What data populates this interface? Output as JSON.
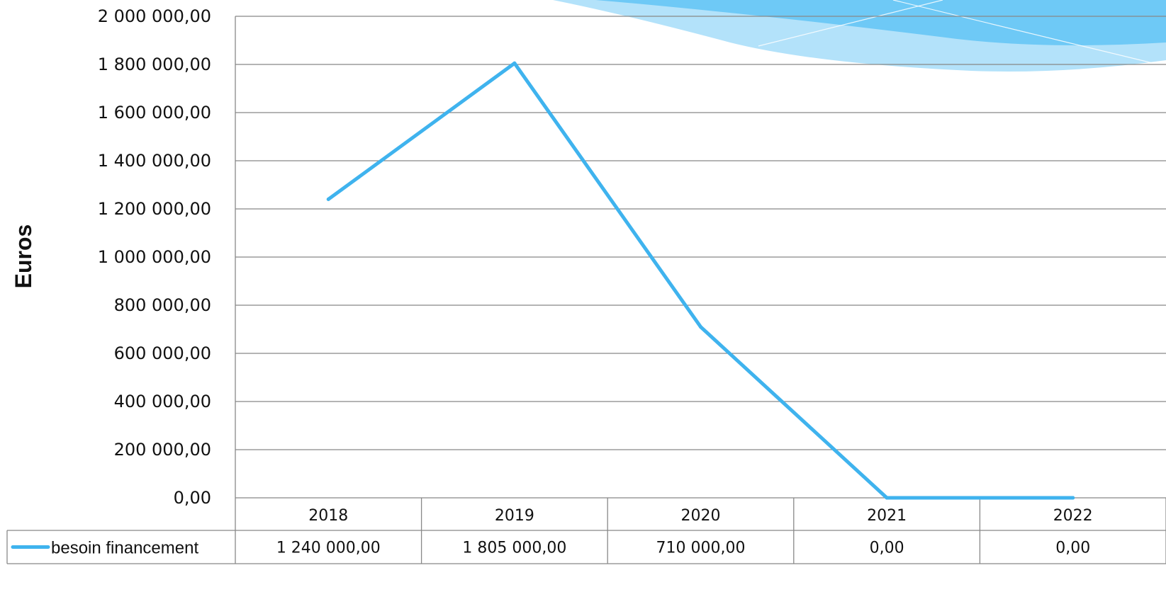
{
  "chart_data": {
    "type": "line",
    "categories": [
      "2018",
      "2019",
      "2020",
      "2021",
      "2022"
    ],
    "series": [
      {
        "name": "besoin financement",
        "values": [
          1240000,
          1805000,
          710000,
          0,
          0
        ],
        "labels": [
          "1 240 000,00",
          "1 805 000,00",
          "710 000,00",
          "0,00",
          "0,00"
        ],
        "color": "#3fb3ee"
      }
    ],
    "yticks": [
      "0,00",
      "200 000,00",
      "400 000,00",
      "600 000,00",
      "800 000,00",
      "1 000 000,00",
      "1 200 000,00",
      "1 400 000,00",
      "1 600 000,00",
      "1 800 000,00",
      "2 000 000,00"
    ],
    "ylim": [
      0,
      2000000
    ],
    "ylabel": "Euros",
    "grid": true,
    "data_table": true
  },
  "theme": {
    "grid_color": "#888888",
    "decoration_color": "#5cc3f5"
  }
}
